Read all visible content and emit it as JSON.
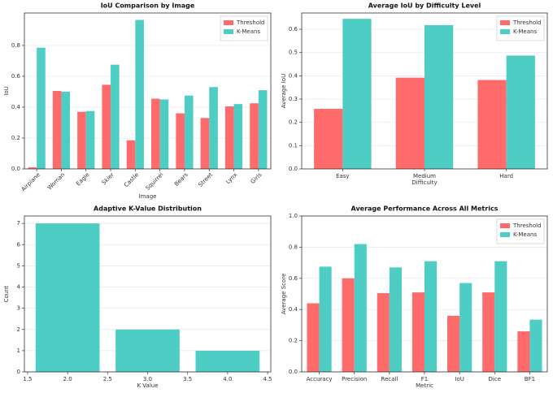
{
  "chart_data": [
    {
      "type": "bar",
      "title": "IoU Comparison by Image",
      "x_label": "Image",
      "y_label": "IoU",
      "categories": [
        "Airplane",
        "Woman",
        "Eagle",
        "Skier",
        "Castle",
        "Squirrel",
        "Bears",
        "Street",
        "Lynx",
        "Girls"
      ],
      "series": [
        {
          "name": "Threshold",
          "color": "#ff6b6b",
          "values": [
            0.01,
            0.505,
            0.37,
            0.545,
            0.185,
            0.455,
            0.36,
            0.33,
            0.405,
            0.425
          ]
        },
        {
          "name": "K-Means",
          "color": "#4ecdc4",
          "values": [
            0.785,
            0.5,
            0.375,
            0.675,
            0.965,
            0.45,
            0.475,
            0.53,
            0.42,
            0.51
          ]
        }
      ],
      "ylim": [
        0,
        1.01
      ],
      "yticks": [
        {
          "value": 0,
          "label": "0.0"
        },
        0.2,
        0.4,
        0.6,
        0.8
      ],
      "grid": true,
      "legend": "upper right",
      "rotate_labels": true
    },
    {
      "type": "bar",
      "title": "Average IoU by Difficulty Level",
      "x_label": "Difficulty",
      "y_label": "Average IoU",
      "categories": [
        "Easy",
        "Medium",
        "Hard"
      ],
      "series": [
        {
          "name": "Threshold",
          "color": "#ff6b6b",
          "values": [
            0.258,
            0.392,
            0.382
          ]
        },
        {
          "name": "K-Means",
          "color": "#4ecdc4",
          "values": [
            0.645,
            0.618,
            0.487
          ]
        }
      ],
      "ylim": [
        0,
        0.67
      ],
      "yticks": [
        {
          "value": 0,
          "label": "0.0"
        },
        0.1,
        0.2,
        0.3,
        0.4,
        0.5,
        0.6
      ],
      "grid": true,
      "legend": "upper right"
    },
    {
      "type": "histogram",
      "title": "Adaptive K-Value Distribution",
      "x_label": "K Value",
      "y_label": "Count",
      "x": [
        2,
        3,
        4
      ],
      "values": [
        7,
        2,
        1
      ],
      "color": "#4ecdc4",
      "xlim": [
        1.46,
        4.54
      ],
      "xticks": [
        1.5,
        {
          "value": 2,
          "label": "2.0"
        },
        2.5,
        {
          "value": 3,
          "label": "3.0"
        },
        3.5,
        {
          "value": 4,
          "label": "4.0"
        },
        4.5
      ],
      "ylim": [
        0,
        7.35
      ],
      "yticks": [
        0,
        1,
        2,
        3,
        4,
        5,
        6,
        7
      ],
      "grid": true
    },
    {
      "type": "bar",
      "title": "Average Performance Across All Metrics",
      "x_label": "Metric",
      "y_label": "Average Score",
      "categories": [
        "Accuracy",
        "Precision",
        "Recall",
        "F1",
        "IoU",
        "Dice",
        "BF1"
      ],
      "series": [
        {
          "name": "Threshold",
          "color": "#ff6b6b",
          "values": [
            0.44,
            0.6,
            0.505,
            0.51,
            0.36,
            0.51,
            0.26
          ]
        },
        {
          "name": "K-Means",
          "color": "#4ecdc4",
          "values": [
            0.675,
            0.82,
            0.67,
            0.71,
            0.57,
            0.71,
            0.335
          ]
        }
      ],
      "ylim": [
        0,
        1
      ],
      "yticks": [
        {
          "value": 0,
          "label": "0.0"
        },
        0.2,
        0.4,
        0.6,
        0.8,
        {
          "value": 1,
          "label": "1.0"
        }
      ],
      "grid": true,
      "legend": "upper right"
    }
  ]
}
